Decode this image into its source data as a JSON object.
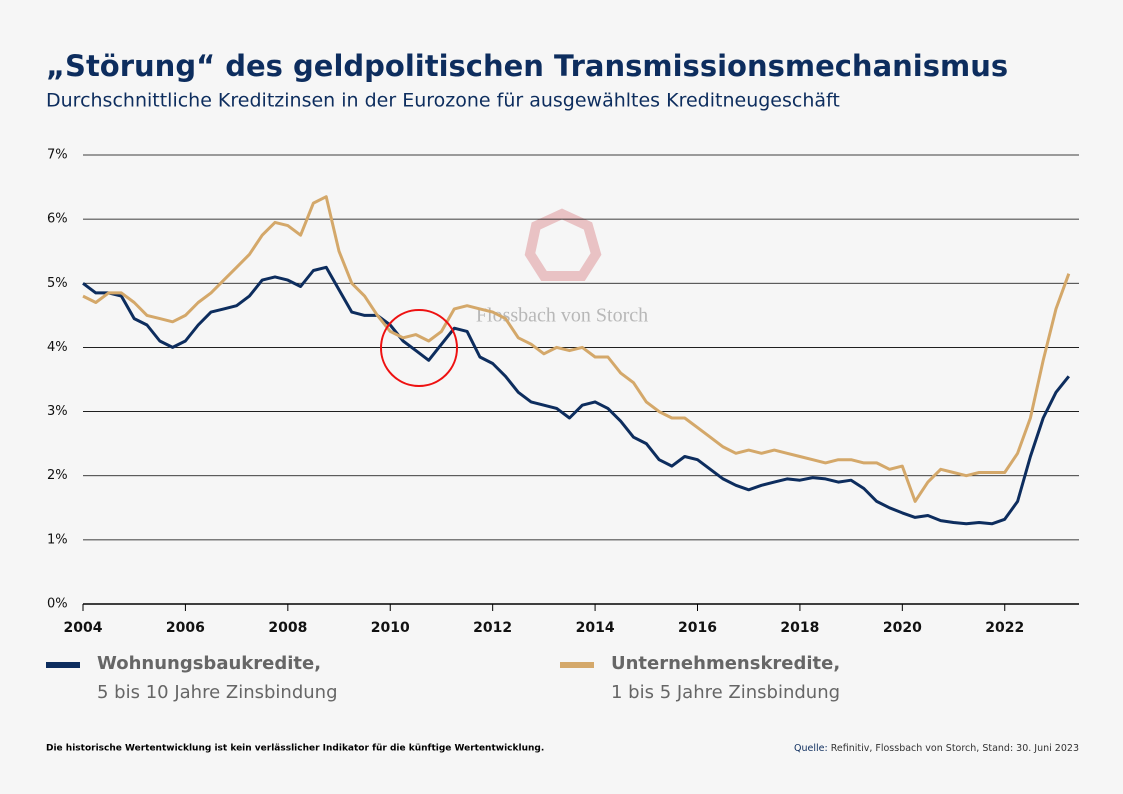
{
  "chart_data": {
    "type": "line",
    "title": "„Störung“ des geldpolitischen Transmissionsmechanismus",
    "subtitle": "Durchschnittliche Kreditzinsen in der Eurozone für ausgewähltes Kreditneugeschäft",
    "watermark": "Flossbach von Storch",
    "x": [
      2004,
      2004.25,
      2004.5,
      2004.75,
      2005,
      2005.25,
      2005.5,
      2005.75,
      2006,
      2006.25,
      2006.5,
      2006.75,
      2007,
      2007.25,
      2007.5,
      2007.75,
      2008,
      2008.25,
      2008.5,
      2008.75,
      2009,
      2009.25,
      2009.5,
      2009.75,
      2010,
      2010.25,
      2010.5,
      2010.75,
      2011,
      2011.25,
      2011.5,
      2011.75,
      2012,
      2012.25,
      2012.5,
      2012.75,
      2013,
      2013.25,
      2013.5,
      2013.75,
      2014,
      2014.25,
      2014.5,
      2014.75,
      2015,
      2015.25,
      2015.5,
      2015.75,
      2016,
      2016.25,
      2016.5,
      2016.75,
      2017,
      2017.25,
      2017.5,
      2017.75,
      2018,
      2018.25,
      2018.5,
      2018.75,
      2019,
      2019.25,
      2019.5,
      2019.75,
      2020,
      2020.25,
      2020.5,
      2020.75,
      2021,
      2021.25,
      2021.5,
      2021.75,
      2022,
      2022.25,
      2022.5,
      2022.75,
      2023,
      2023.25
    ],
    "series": [
      {
        "name": "Wohnungsbaukredite,",
        "detail": "5 bis 10 Jahre Zinsbindung",
        "color": "#0d2d5e",
        "values": [
          5.0,
          4.85,
          4.85,
          4.8,
          4.45,
          4.35,
          4.1,
          4.0,
          4.1,
          4.35,
          4.55,
          4.6,
          4.65,
          4.8,
          5.05,
          5.1,
          5.05,
          4.95,
          5.2,
          5.25,
          4.9,
          4.55,
          4.5,
          4.5,
          4.35,
          4.1,
          3.95,
          3.8,
          4.05,
          4.3,
          4.25,
          3.85,
          3.75,
          3.55,
          3.3,
          3.15,
          3.1,
          3.05,
          2.9,
          3.1,
          3.15,
          3.05,
          2.85,
          2.6,
          2.5,
          2.25,
          2.15,
          2.3,
          2.25,
          2.1,
          1.95,
          1.85,
          1.78,
          1.85,
          1.9,
          1.95,
          1.93,
          1.97,
          1.95,
          1.9,
          1.93,
          1.8,
          1.6,
          1.5,
          1.42,
          1.35,
          1.38,
          1.3,
          1.27,
          1.25,
          1.27,
          1.25,
          1.32,
          1.6,
          2.3,
          2.9,
          3.3,
          3.55
        ]
      },
      {
        "name": "Unternehmenskredite,",
        "detail": "1 bis 5 Jahre Zinsbindung",
        "color": "#d4a86a",
        "values": [
          4.8,
          4.7,
          4.85,
          4.85,
          4.7,
          4.5,
          4.45,
          4.4,
          4.5,
          4.7,
          4.85,
          5.05,
          5.25,
          5.45,
          5.75,
          5.95,
          5.9,
          5.75,
          6.25,
          6.35,
          5.5,
          5.0,
          4.8,
          4.5,
          4.25,
          4.15,
          4.2,
          4.1,
          4.25,
          4.6,
          4.65,
          4.6,
          4.55,
          4.45,
          4.15,
          4.05,
          3.9,
          4.0,
          3.95,
          4.0,
          3.85,
          3.85,
          3.6,
          3.45,
          3.15,
          3.0,
          2.9,
          2.9,
          2.75,
          2.6,
          2.45,
          2.35,
          2.4,
          2.35,
          2.4,
          2.35,
          2.3,
          2.25,
          2.2,
          2.25,
          2.25,
          2.2,
          2.2,
          2.1,
          2.15,
          1.6,
          1.9,
          2.1,
          2.05,
          2.0,
          2.05,
          2.05,
          2.05,
          2.35,
          2.9,
          3.8,
          4.6,
          5.15
        ]
      }
    ],
    "xlim": [
      2004,
      2023.45
    ],
    "xticks": [
      2004,
      2006,
      2008,
      2010,
      2012,
      2014,
      2016,
      2018,
      2020,
      2022
    ],
    "ylim": [
      0,
      7
    ],
    "yticks": [
      {
        "value": 0,
        "label": "0%"
      },
      {
        "value": 1,
        "label": "1%"
      },
      {
        "value": 2,
        "label": "2%"
      },
      {
        "value": 3,
        "label": "3%"
      },
      {
        "value": 4,
        "label": "4%"
      },
      {
        "value": 5,
        "label": "5%"
      },
      {
        "value": 6,
        "label": "6%"
      },
      {
        "value": 7,
        "label": "7%"
      }
    ],
    "grid": true,
    "disclaimer": "Die historische Wertentwicklung ist kein verlässlicher Indikator für die künftige Wertentwicklung.",
    "source_label": "Quelle:",
    "source": "Refinitiv, Flossbach von Storch, Stand: 30. Juni 2023"
  }
}
